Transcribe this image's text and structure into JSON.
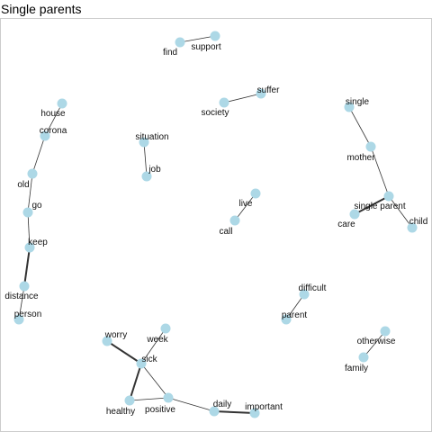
{
  "title": "Single parents",
  "colors": {
    "node": "#add8e6",
    "edge": "#333333",
    "border": "#cccccc"
  },
  "nodes": [
    {
      "id": "find",
      "label": "find"
    },
    {
      "id": "support",
      "label": "support"
    },
    {
      "id": "suffer",
      "label": "suffer"
    },
    {
      "id": "society",
      "label": "society"
    },
    {
      "id": "single",
      "label": "single"
    },
    {
      "id": "house",
      "label": "house"
    },
    {
      "id": "corona",
      "label": "corona"
    },
    {
      "id": "situation",
      "label": "situation"
    },
    {
      "id": "job",
      "label": "job"
    },
    {
      "id": "mother",
      "label": "mother"
    },
    {
      "id": "old",
      "label": "old"
    },
    {
      "id": "go",
      "label": "go"
    },
    {
      "id": "live",
      "label": "live"
    },
    {
      "id": "call",
      "label": "call"
    },
    {
      "id": "single-parent",
      "label": "single parent"
    },
    {
      "id": "care",
      "label": "care"
    },
    {
      "id": "child",
      "label": "child"
    },
    {
      "id": "keep",
      "label": "keep"
    },
    {
      "id": "distance",
      "label": "distance"
    },
    {
      "id": "person",
      "label": "person"
    },
    {
      "id": "difficult",
      "label": "difficult"
    },
    {
      "id": "parent",
      "label": "parent"
    },
    {
      "id": "week",
      "label": "week"
    },
    {
      "id": "worry",
      "label": "worry"
    },
    {
      "id": "otherwise",
      "label": "otherwise"
    },
    {
      "id": "family",
      "label": "family"
    },
    {
      "id": "sick",
      "label": "sick"
    },
    {
      "id": "healthy",
      "label": "healthy"
    },
    {
      "id": "positive",
      "label": "positive"
    },
    {
      "id": "daily",
      "label": "daily"
    },
    {
      "id": "important",
      "label": "important"
    }
  ],
  "edges": [
    {
      "source": "find",
      "target": "support",
      "weight": 1
    },
    {
      "source": "society",
      "target": "suffer",
      "weight": 1
    },
    {
      "source": "single",
      "target": "mother",
      "weight": 1
    },
    {
      "source": "mother",
      "target": "single-parent",
      "weight": 1
    },
    {
      "source": "single-parent",
      "target": "care",
      "weight": 2
    },
    {
      "source": "single-parent",
      "target": "child",
      "weight": 1
    },
    {
      "source": "house",
      "target": "corona",
      "weight": 1
    },
    {
      "source": "corona",
      "target": "old",
      "weight": 1
    },
    {
      "source": "old",
      "target": "go",
      "weight": 1
    },
    {
      "source": "go",
      "target": "keep",
      "weight": 1
    },
    {
      "source": "keep",
      "target": "distance",
      "weight": 2
    },
    {
      "source": "distance",
      "target": "person",
      "weight": 1
    },
    {
      "source": "situation",
      "target": "job",
      "weight": 1
    },
    {
      "source": "live",
      "target": "call",
      "weight": 1
    },
    {
      "source": "difficult",
      "target": "parent",
      "weight": 1
    },
    {
      "source": "otherwise",
      "target": "family",
      "weight": 1
    },
    {
      "source": "worry",
      "target": "sick",
      "weight": 2
    },
    {
      "source": "week",
      "target": "sick",
      "weight": 1
    },
    {
      "source": "sick",
      "target": "healthy",
      "weight": 2
    },
    {
      "source": "sick",
      "target": "positive",
      "weight": 1
    },
    {
      "source": "healthy",
      "target": "positive",
      "weight": 1
    },
    {
      "source": "positive",
      "target": "daily",
      "weight": 1
    },
    {
      "source": "daily",
      "target": "important",
      "weight": 2
    }
  ]
}
